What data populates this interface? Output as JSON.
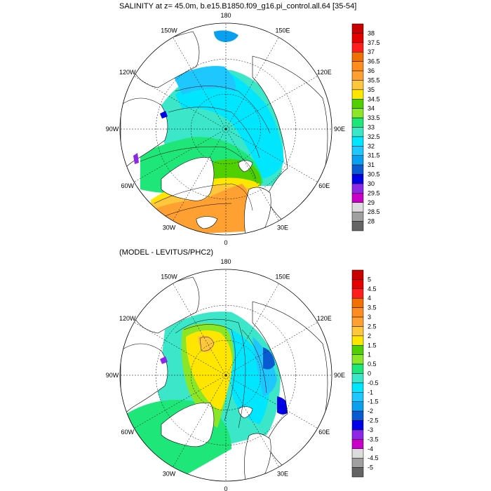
{
  "panels": [
    {
      "title": "SALINITY at z=  45.0m, b.e15.B1850.f09_g16.pi_control.all.64 [35-54]",
      "colorbar": {
        "levels": [
          "38",
          "37.5",
          "37",
          "36.5",
          "36",
          "35.5",
          "35",
          "34.5",
          "34",
          "33.5",
          "33",
          "32.5",
          "32",
          "31.5",
          "31",
          "30.5",
          "30",
          "29.5",
          "29",
          "28.5",
          "28"
        ],
        "colors": [
          "#c80000",
          "#e40000",
          "#ff1e1e",
          "#f07000",
          "#ff8c1e",
          "#ffa032",
          "#ffc83c",
          "#ffe600",
          "#50d000",
          "#8ce628",
          "#1ee678",
          "#3ce6c8",
          "#00e6ff",
          "#1ec8ff",
          "#0aa0f0",
          "#0a5ad2",
          "#0000e6",
          "#8c28e6",
          "#c800c8",
          "#dcdcdc",
          "#a0a0a0",
          "#646464"
        ]
      }
    },
    {
      "title": "(MODEL - LEVITUS/PHC2)",
      "colorbar": {
        "levels": [
          "5",
          "4.5",
          "4",
          "3.5",
          "3",
          "2.5",
          "2",
          "1.5",
          "1",
          "0.5",
          "0",
          "-0.5",
          "-1",
          "-1.5",
          "-2",
          "-2.5",
          "-3",
          "-3.5",
          "-4",
          "-4.5",
          "-5"
        ],
        "colors": [
          "#c80000",
          "#e40000",
          "#ff1e1e",
          "#f07000",
          "#ff8c1e",
          "#ffa032",
          "#ffc83c",
          "#ffe600",
          "#50d000",
          "#8ce628",
          "#1ee678",
          "#3ce6c8",
          "#00e6ff",
          "#1ec8ff",
          "#0aa0f0",
          "#0a5ad2",
          "#0000e6",
          "#8c28e6",
          "#c800c8",
          "#dcdcdc",
          "#a0a0a0",
          "#646464"
        ]
      }
    }
  ],
  "map": {
    "lon_labels": [
      "180",
      "150W",
      "120W",
      "90W",
      "60W",
      "30W",
      "0",
      "30E",
      "60E",
      "90E",
      "120E",
      "150E"
    ]
  }
}
